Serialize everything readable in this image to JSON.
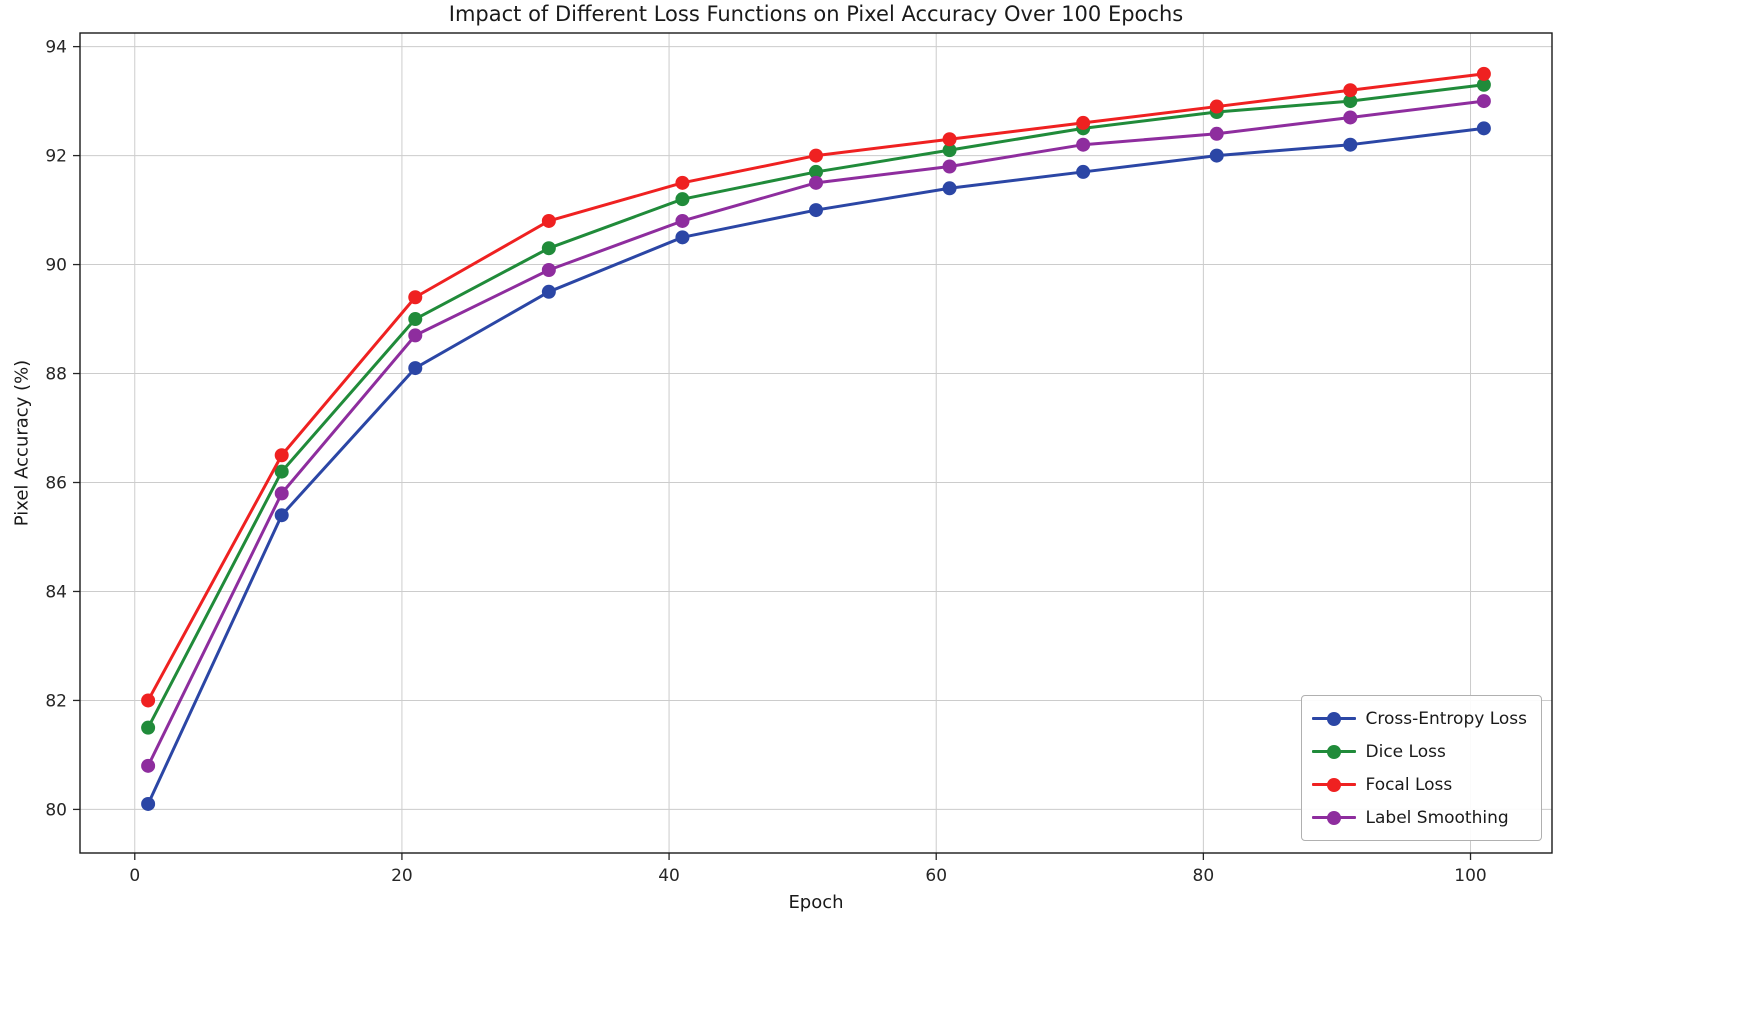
{
  "figure": {
    "title": "Impact of Different Loss Functions on Pixel Accuracy Over 100 Epochs",
    "xlabel": "Epoch",
    "ylabel": "Pixel Accuracy (%)"
  },
  "chart_data": {
    "type": "line",
    "title": "Impact of Different Loss Functions on Pixel Accuracy Over 100 Epochs",
    "xlabel": "Epoch",
    "ylabel": "Pixel Accuracy (%)",
    "x": [
      1,
      11,
      21,
      31,
      41,
      51,
      61,
      71,
      81,
      91,
      101
    ],
    "series": [
      {
        "name": "Cross-Entropy Loss",
        "color": "#2b46a5",
        "values": [
          80.1,
          85.4,
          88.1,
          89.5,
          90.5,
          91.0,
          91.4,
          91.7,
          92.0,
          92.2,
          92.5
        ]
      },
      {
        "name": "Dice Loss",
        "color": "#208b3a",
        "values": [
          81.5,
          86.2,
          89.0,
          90.3,
          91.2,
          91.7,
          92.1,
          92.5,
          92.8,
          93.0,
          93.3
        ]
      },
      {
        "name": "Focal Loss",
        "color": "#ef2121",
        "values": [
          82.0,
          86.5,
          89.4,
          90.8,
          91.5,
          92.0,
          92.3,
          92.6,
          92.9,
          93.2,
          93.5
        ]
      },
      {
        "name": "Label Smoothing",
        "color": "#8e2d9e",
        "values": [
          80.8,
          85.8,
          88.7,
          89.9,
          90.8,
          91.5,
          91.8,
          92.2,
          92.4,
          92.7,
          93.0
        ]
      }
    ],
    "xticks": [
      0,
      20,
      40,
      60,
      80,
      100
    ],
    "yticks": [
      80,
      82,
      84,
      86,
      88,
      90,
      92,
      94
    ],
    "xlim": [
      -4.1,
      106.1
    ],
    "ylim": [
      79.2,
      94.25
    ],
    "grid": true,
    "grid_color": "#cccccc",
    "legend_position": "lower right",
    "marker": "circle",
    "marker_size": 7,
    "line_width": 3
  }
}
